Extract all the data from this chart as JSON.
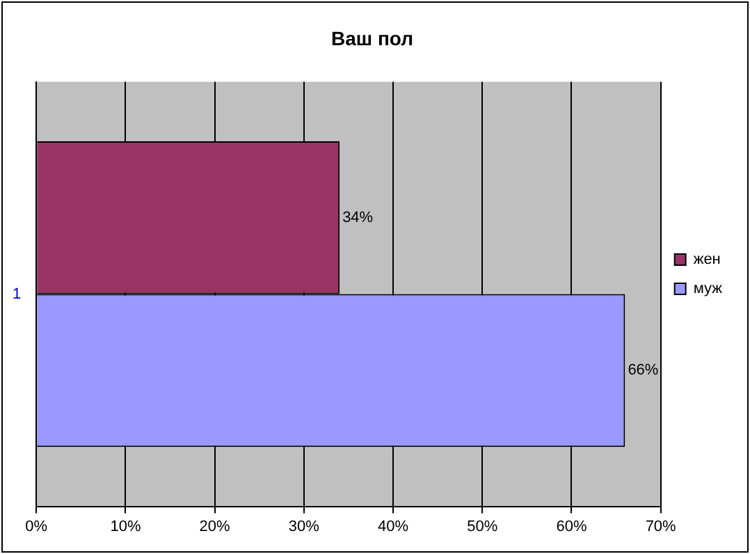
{
  "chart_data": {
    "type": "bar",
    "title": "Ваш пол",
    "orientation": "horizontal",
    "categories": [
      "1"
    ],
    "series": [
      {
        "name": "жен",
        "color": "#993366",
        "values": [
          34
        ],
        "value_labels": [
          "34%"
        ]
      },
      {
        "name": "муж",
        "color": "#9999ff",
        "values": [
          66
        ],
        "value_labels": [
          "66%"
        ]
      }
    ],
    "xlim": [
      0,
      70
    ],
    "xticks": [
      {
        "value": 0,
        "label": "0%"
      },
      {
        "value": 10,
        "label": "10%"
      },
      {
        "value": 20,
        "label": "20%"
      },
      {
        "value": 30,
        "label": "30%"
      },
      {
        "value": 40,
        "label": "40%"
      },
      {
        "value": 50,
        "label": "50%"
      },
      {
        "value": 60,
        "label": "60%"
      },
      {
        "value": 70,
        "label": "70%"
      }
    ],
    "grid": "x",
    "legend": "right"
  }
}
